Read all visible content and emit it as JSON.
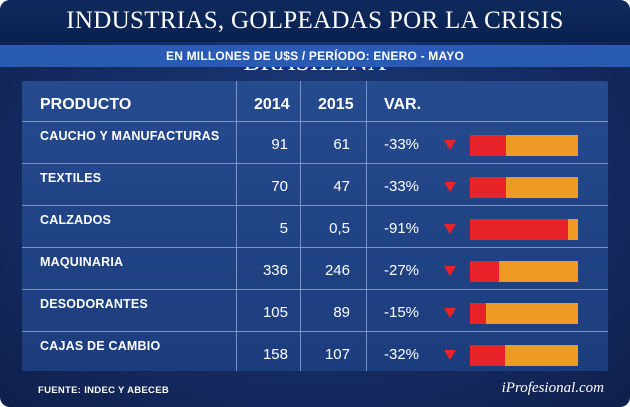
{
  "title": "INDUSTRIAS, GOLPEADAS POR LA CRISIS BRASILEÑA",
  "subtitle": "EN MILLONES DE U$S / PERÍODO: ENERO - MAYO",
  "table": {
    "headers": {
      "product": "PRODUCTO",
      "y2014": "2014",
      "y2015": "2015",
      "var": "VAR."
    },
    "rows": [
      {
        "product": "CAUCHO Y MANUFACTURAS",
        "v2014": "91",
        "v2015": "61",
        "var": "-33%"
      },
      {
        "product": "TEXTILES",
        "v2014": "70",
        "v2015": "47",
        "var": "-33%"
      },
      {
        "product": "CALZADOS",
        "v2014": "5",
        "v2015": "0,5",
        "var": "-91%"
      },
      {
        "product": "MAQUINARIA",
        "v2014": "336",
        "v2015": "246",
        "var": "-27%"
      },
      {
        "product": "DESODORANTES",
        "v2014": "105",
        "v2015": "89",
        "var": "-15%"
      },
      {
        "product": "CAJAS DE CAMBIO",
        "v2014": "158",
        "v2015": "107",
        "var": "-32%"
      }
    ]
  },
  "chart_data": {
    "type": "table",
    "title": "INDUSTRIAS, GOLPEADAS POR LA CRISIS BRASILEÑA",
    "subtitle": "EN MILLONES DE U$S / PERÍODO: ENERO - MAYO",
    "columns": [
      "PRODUCTO",
      "2014",
      "2015",
      "VAR."
    ],
    "categories": [
      "CAUCHO Y MANUFACTURAS",
      "TEXTILES",
      "CALZADOS",
      "MAQUINARIA",
      "DESODORANTES",
      "CAJAS DE CAMBIO"
    ],
    "series": [
      {
        "name": "2014",
        "values": [
          91,
          70,
          5,
          336,
          105,
          158
        ]
      },
      {
        "name": "2015",
        "values": [
          61,
          47,
          0.5,
          246,
          89,
          107
        ]
      },
      {
        "name": "VAR.",
        "values": [
          -33,
          -33,
          -91,
          -27,
          -15,
          -32
        ]
      }
    ],
    "bar_decline_pct": [
      33,
      33,
      91,
      27,
      15,
      32
    ]
  },
  "colors": {
    "decline": "#e8242a",
    "remaining": "#f09a26",
    "header_band": "#2a5bb4"
  },
  "footer": {
    "source": "FUENTE: INDEC Y ABECEB",
    "brand": "iProfesional.com"
  }
}
